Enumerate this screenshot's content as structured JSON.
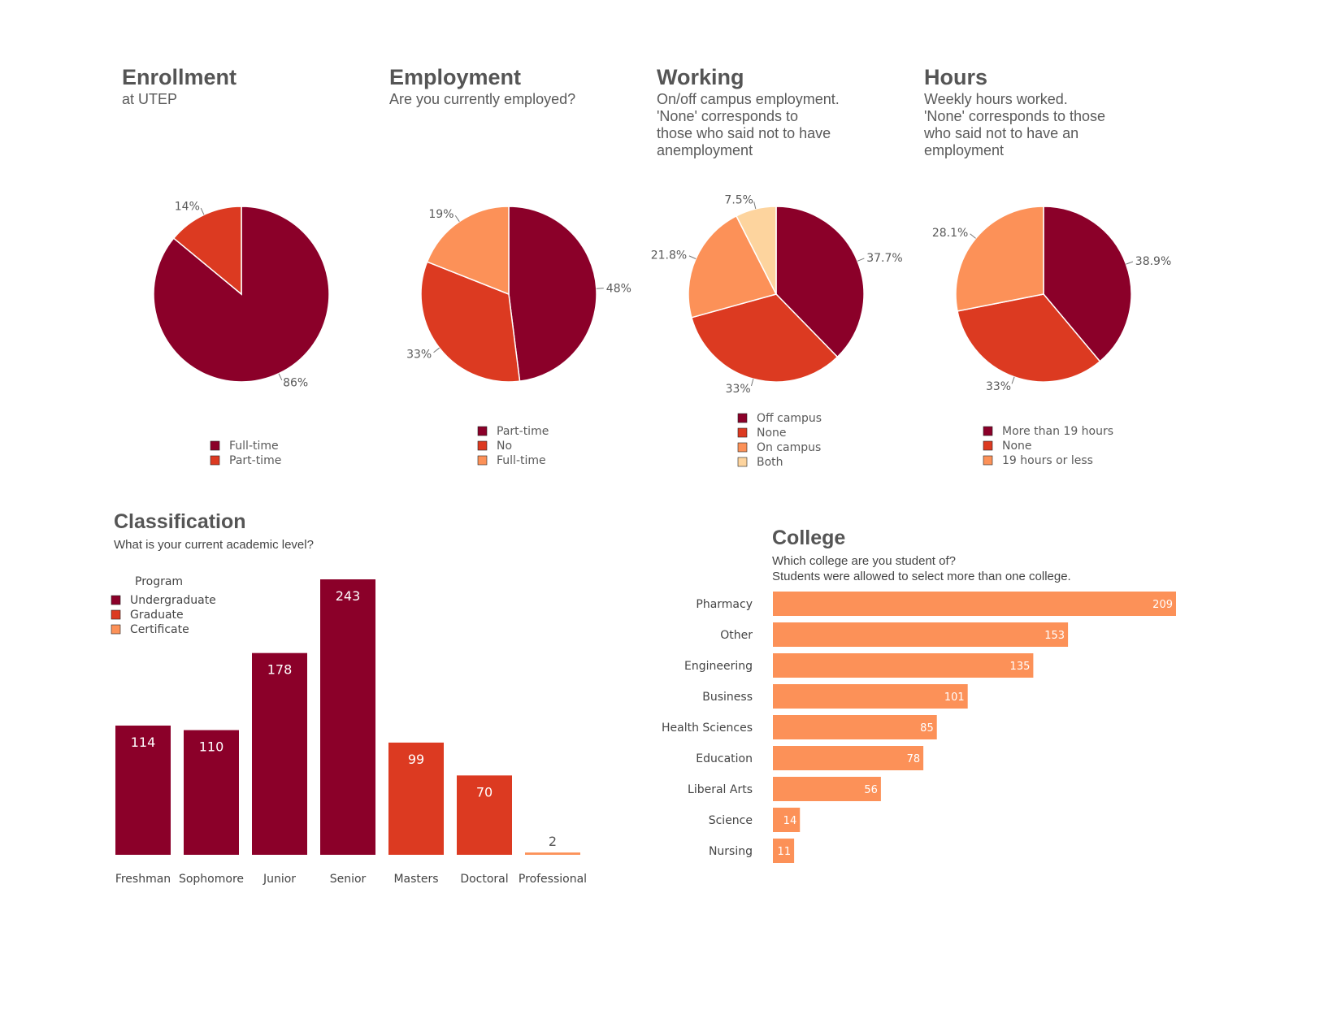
{
  "colors": {
    "c1": "#8b0029",
    "c2": "#dc3a21",
    "c3": "#fc9158",
    "c4": "#fdd49e",
    "text": "#5a5a5a"
  },
  "enrollment": {
    "title": "Enrollment",
    "subtitle": "at UTEP",
    "chart_data": {
      "type": "pie",
      "slices": [
        {
          "label": "Full-time",
          "value": 86,
          "text": "86%"
        },
        {
          "label": "Part-time",
          "value": 14,
          "text": "14%"
        }
      ]
    }
  },
  "employment": {
    "title": "Employment",
    "subtitle": "Are you currently employed?",
    "chart_data": {
      "type": "pie",
      "slices": [
        {
          "label": "Part-time",
          "value": 48,
          "text": "48%"
        },
        {
          "label": "No",
          "value": 33,
          "text": "33%"
        },
        {
          "label": "Full-time",
          "value": 19,
          "text": "19%"
        }
      ]
    }
  },
  "working": {
    "title": "Working",
    "subtitle": "On/off campus employment.\n'None' corresponds to\nthose who said not to have\nanemployment",
    "chart_data": {
      "type": "pie",
      "slices": [
        {
          "label": "Off campus",
          "value": 37.7,
          "text": "37.7%"
        },
        {
          "label": "None",
          "value": 33,
          "text": "33%"
        },
        {
          "label": "On campus",
          "value": 21.8,
          "text": "21.8%"
        },
        {
          "label": "Both",
          "value": 7.5,
          "text": "7.5%"
        }
      ]
    }
  },
  "hours": {
    "title": "Hours",
    "subtitle": "Weekly hours worked.\n'None' corresponds to those\nwho said not to have an\nemployment",
    "chart_data": {
      "type": "pie",
      "slices": [
        {
          "label": "More than 19 hours",
          "value": 38.9,
          "text": "38.9%"
        },
        {
          "label": "None",
          "value": 33,
          "text": "33%"
        },
        {
          "label": "19 hours or less",
          "value": 28.1,
          "text": "28.1%"
        }
      ]
    }
  },
  "classification": {
    "title": "Classification",
    "subtitle": "What is your current academic level?",
    "legend_title": "Program",
    "chart_data": {
      "type": "bar",
      "legend": [
        "Undergraduate",
        "Graduate",
        "Certificate"
      ],
      "categories": [
        "Freshman",
        "Sophomore",
        "Junior",
        "Senior",
        "Masters",
        "Doctoral",
        "Professional"
      ],
      "values": [
        114,
        110,
        178,
        243,
        99,
        70,
        2
      ],
      "program": [
        "Undergraduate",
        "Undergraduate",
        "Undergraduate",
        "Undergraduate",
        "Graduate",
        "Graduate",
        "Certificate"
      ]
    }
  },
  "college": {
    "title": "College",
    "subtitle": "Which college are you student of?\nStudents were allowed to select more than one college.",
    "chart_data": {
      "type": "bar",
      "orientation": "horizontal",
      "categories": [
        "Pharmacy",
        "Other",
        "Engineering",
        "Business",
        "Health Sciences",
        "Education",
        "Liberal Arts",
        "Science",
        "Nursing"
      ],
      "values": [
        209,
        153,
        135,
        101,
        85,
        78,
        56,
        14,
        11
      ]
    }
  }
}
